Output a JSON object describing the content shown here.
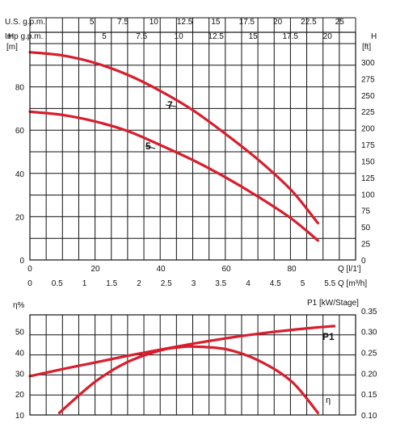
{
  "chart_data": [
    {
      "type": "line",
      "ylabel_left": "H",
      "ylabel_left_unit": "[m]",
      "ylabel_right": "H",
      "ylabel_right_unit": "[ft]",
      "xlabel_main": "Q [l/1']",
      "xlabel_secondary": "Q [m³/h]",
      "top_axis_1_label": "U.S. g.p.m.",
      "top_axis_2_label": "Imp g.p.m.",
      "xlim": [
        0,
        95
      ],
      "ylim": [
        0,
        96
      ],
      "x_ticks": [
        "0",
        "20",
        "40",
        "60",
        "80"
      ],
      "x_tick_values": [
        0,
        20,
        40,
        60,
        80
      ],
      "y_ticks_left": [
        "0",
        "20",
        "40",
        "60",
        "80"
      ],
      "y_tick_values_left": [
        0,
        20,
        40,
        60,
        80
      ],
      "y_ticks_right": [
        "0",
        "25",
        "50",
        "75",
        "100",
        "125",
        "150",
        "175",
        "200",
        "225",
        "250",
        "275",
        "300"
      ],
      "y_tick_values_right_ft": [
        0,
        25,
        50,
        75,
        100,
        125,
        150,
        175,
        200,
        225,
        250,
        275,
        300
      ],
      "m3h_ticks": [
        "0",
        "0.5",
        "1",
        "1.5",
        "2",
        "2.5",
        "3",
        "3.5",
        "4",
        "4.5",
        "5",
        "5.5"
      ],
      "m3h_tick_values": [
        0,
        0.5,
        1,
        1.5,
        2,
        2.5,
        3,
        3.5,
        4,
        4.5,
        5,
        5.5
      ],
      "usgpm_ticks": [
        "5",
        "7.5",
        "10",
        "12.5",
        "15",
        "17.5",
        "20",
        "22.5",
        "25"
      ],
      "usgpm_tick_values": [
        5,
        7.5,
        10,
        12.5,
        15,
        17.5,
        20,
        22.5,
        25
      ],
      "impgpm_ticks": [
        "5",
        "7.5",
        "10",
        "12.5",
        "15",
        "17.5",
        "20"
      ],
      "impgpm_tick_values": [
        5,
        7.5,
        10,
        12.5,
        15,
        17.5,
        20
      ],
      "series": [
        {
          "name": "7",
          "x": [
            0,
            10,
            20,
            30,
            40,
            50,
            60,
            70,
            80,
            88
          ],
          "y": [
            96,
            94.5,
            91,
            85.5,
            78,
            69,
            58,
            46,
            32,
            17
          ]
        },
        {
          "name": "5",
          "x": [
            0,
            10,
            20,
            30,
            40,
            50,
            60,
            70,
            80,
            88
          ],
          "y": [
            68.5,
            67,
            64,
            59.5,
            53,
            46,
            38,
            29,
            19,
            9
          ]
        }
      ]
    },
    {
      "type": "line",
      "ylabel_left": "η%",
      "ylabel_right": "P1 [kW/Stage]",
      "xlim": [
        0,
        95
      ],
      "ylim_left": [
        10,
        55
      ],
      "ylim_right": [
        0.1,
        0.35
      ],
      "y_ticks_left": [
        "10",
        "20",
        "30",
        "40",
        "50"
      ],
      "y_tick_values_left": [
        10,
        20,
        30,
        40,
        50
      ],
      "y_ticks_right": [
        "0.10",
        "0.15",
        "0.20",
        "0.25",
        "0.30",
        "0.35"
      ],
      "y_tick_values_right": [
        0.1,
        0.15,
        0.2,
        0.25,
        0.3,
        0.35
      ],
      "series": [
        {
          "name": "P1",
          "axis": "right",
          "x": [
            0,
            10,
            20,
            30,
            40,
            50,
            60,
            70,
            80,
            88,
            93
          ],
          "y": [
            0.193,
            0.21,
            0.226,
            0.242,
            0.257,
            0.271,
            0.284,
            0.295,
            0.304,
            0.31,
            0.313
          ]
        },
        {
          "name": "η",
          "axis": "left",
          "x": [
            9,
            20,
            30,
            40,
            46,
            50,
            60,
            70,
            80,
            88
          ],
          "y": [
            11,
            26,
            35.5,
            41,
            42.5,
            42.8,
            41.5,
            36,
            26,
            11
          ]
        }
      ]
    }
  ]
}
